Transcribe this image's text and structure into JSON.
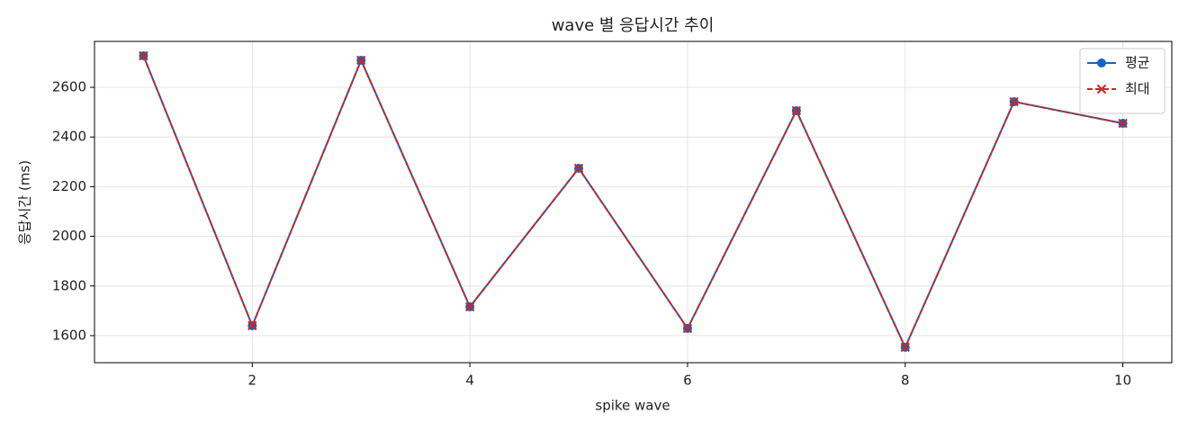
{
  "chart_data": {
    "type": "line",
    "title": "wave 별 응답시간 추이",
    "xlabel": "spike wave",
    "ylabel": "응답시간 (ms)",
    "x": [
      1,
      2,
      3,
      4,
      5,
      6,
      7,
      8,
      9,
      10
    ],
    "series": [
      {
        "name": "평균",
        "color": "#1565c0",
        "marker": "o",
        "linestyle": "solid",
        "values": [
          2727,
          1640,
          2709,
          1716,
          2274,
          1629,
          2506,
          1553,
          2542,
          2455
        ]
      },
      {
        "name": "최대",
        "color": "#c62828",
        "marker": "x",
        "linestyle": "dashed",
        "values": [
          2727,
          1640,
          2709,
          1716,
          2274,
          1629,
          2506,
          1553,
          2542,
          2455
        ]
      }
    ],
    "xlim": [
      0.55,
      10.45
    ],
    "ylim": [
      1491,
      2785
    ],
    "xticks": [
      2,
      4,
      6,
      8,
      10
    ],
    "yticks": [
      1600,
      1800,
      2000,
      2200,
      2400,
      2600
    ],
    "grid": true,
    "legend": "upper right"
  }
}
